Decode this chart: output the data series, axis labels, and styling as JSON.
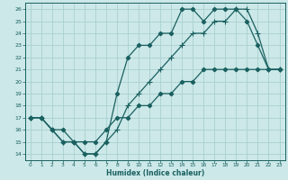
{
  "xlabel": "Humidex (Indice chaleur)",
  "bg_color": "#cce8e8",
  "grid_color": "#aad0d0",
  "line_color": "#1a6060",
  "xlim": [
    -0.5,
    23.5
  ],
  "ylim": [
    13.5,
    26.5
  ],
  "xticks": [
    0,
    1,
    2,
    3,
    4,
    5,
    6,
    7,
    8,
    9,
    10,
    11,
    12,
    13,
    14,
    15,
    16,
    17,
    18,
    19,
    20,
    21,
    22,
    23
  ],
  "yticks": [
    14,
    15,
    16,
    17,
    18,
    19,
    20,
    21,
    22,
    23,
    24,
    25,
    26
  ],
  "line1_x": [
    0,
    1,
    2,
    3,
    4,
    5,
    6,
    7,
    8,
    9,
    10,
    11,
    12,
    13,
    14,
    15,
    16,
    17,
    18,
    19,
    20,
    21,
    22,
    23
  ],
  "line1_y": [
    17,
    17,
    16,
    16,
    15,
    15,
    15,
    16,
    17,
    17,
    18,
    18,
    19,
    19,
    20,
    20,
    21,
    21,
    21,
    21,
    21,
    21,
    21,
    21
  ],
  "line2_x": [
    0,
    1,
    2,
    3,
    4,
    5,
    6,
    7,
    8,
    9,
    10,
    11,
    12,
    13,
    14,
    15,
    16,
    17,
    18,
    19,
    20,
    21,
    22,
    23
  ],
  "line2_y": [
    17,
    17,
    16,
    15,
    15,
    14,
    14,
    15,
    19,
    22,
    23,
    23,
    24,
    24,
    26,
    26,
    25,
    26,
    26,
    26,
    25,
    23,
    21,
    21
  ],
  "line3_x": [
    0,
    1,
    2,
    3,
    4,
    5,
    6,
    7,
    8,
    9,
    10,
    11,
    12,
    13,
    14,
    15,
    16,
    17,
    18,
    19,
    20,
    21,
    22,
    23
  ],
  "line3_y": [
    17,
    17,
    16,
    15,
    15,
    14,
    14,
    15,
    16,
    18,
    19,
    20,
    21,
    22,
    23,
    24,
    24,
    25,
    25,
    26,
    26,
    24,
    21,
    21
  ]
}
